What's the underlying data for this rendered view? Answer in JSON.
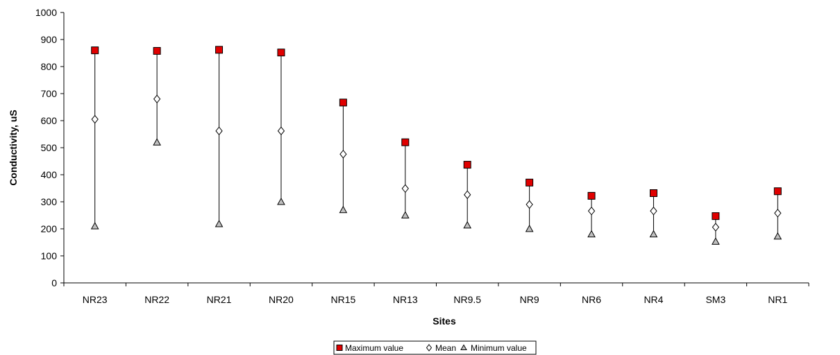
{
  "chart_data": {
    "type": "scatter",
    "title": "",
    "xlabel": "Sites",
    "ylabel": "Conductivity, uS",
    "ylim": [
      0,
      1000
    ],
    "yticks": [
      0,
      100,
      200,
      300,
      400,
      500,
      600,
      700,
      800,
      900,
      1000
    ],
    "grid": false,
    "legend_position": "bottom",
    "categories": [
      "NR23",
      "NR22",
      "NR21",
      "NR20",
      "NR15",
      "NR13",
      "NR9.5",
      "NR9",
      "NR6",
      "NR4",
      "SM3",
      "NR1"
    ],
    "series": [
      {
        "name": "Maximum value",
        "marker": "square",
        "color": "#e00000",
        "values": [
          860,
          858,
          862,
          852,
          667,
          520,
          437,
          371,
          322,
          332,
          247,
          339
        ]
      },
      {
        "name": "Mean",
        "marker": "diamond",
        "color": "#ffffff",
        "values": [
          605,
          680,
          562,
          562,
          476,
          349,
          326,
          290,
          266,
          266,
          206,
          258
        ]
      },
      {
        "name": "Minimum value",
        "marker": "triangle",
        "color": "#c0c0c0",
        "values": [
          210,
          520,
          218,
          300,
          270,
          250,
          213,
          200,
          180,
          180,
          153,
          172
        ]
      }
    ]
  }
}
